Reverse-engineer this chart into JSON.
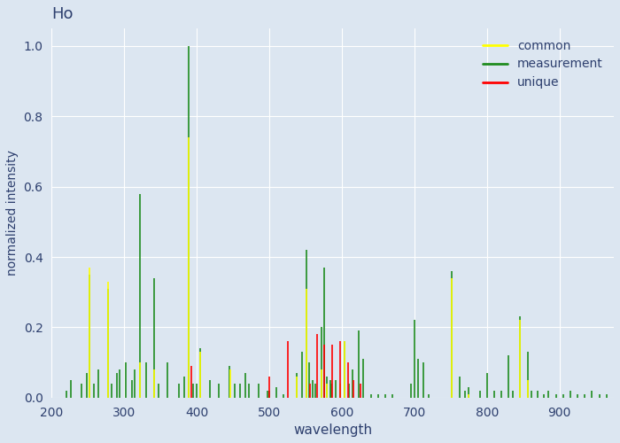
{
  "title": "Ho",
  "xlabel": "wavelength",
  "ylabel": "normalized intensity",
  "xlim": [
    200,
    975
  ],
  "ylim": [
    0,
    1.05
  ],
  "background_color": "#dce6f1",
  "figure_bg": "#dce6f1",
  "legend_labels": [
    "common",
    "measurement",
    "unique"
  ],
  "common_lines": {
    "wavelengths": [
      252,
      278,
      322,
      341,
      389,
      405,
      446,
      538,
      551,
      572,
      579,
      598,
      604,
      752,
      775,
      845,
      856
    ],
    "intensities": [
      0.37,
      0.33,
      0.1,
      0.08,
      0.74,
      0.13,
      0.08,
      0.06,
      0.31,
      0.08,
      0.04,
      0.04,
      0.16,
      0.34,
      0.01,
      0.22,
      0.05
    ]
  },
  "measurement_lines": {
    "wavelengths": [
      220,
      227,
      241,
      248,
      252,
      258,
      265,
      278,
      283,
      290,
      294,
      302,
      311,
      315,
      322,
      330,
      341,
      347,
      360,
      375,
      383,
      389,
      395,
      400,
      405,
      418,
      430,
      445,
      452,
      460,
      467,
      472,
      485,
      498,
      500,
      510,
      520,
      538,
      545,
      551,
      555,
      560,
      564,
      572,
      576,
      579,
      584,
      586,
      592,
      598,
      604,
      610,
      615,
      623,
      630,
      641,
      650,
      660,
      670,
      695,
      700,
      705,
      712,
      720,
      752,
      762,
      770,
      775,
      790,
      800,
      810,
      820,
      830,
      836,
      845,
      856,
      862,
      870,
      878,
      885,
      895,
      905,
      915,
      925,
      935,
      945,
      955,
      965
    ],
    "intensities": [
      0.02,
      0.05,
      0.04,
      0.07,
      0.35,
      0.04,
      0.08,
      0.31,
      0.04,
      0.07,
      0.08,
      0.1,
      0.05,
      0.08,
      0.58,
      0.1,
      0.34,
      0.04,
      0.1,
      0.04,
      0.06,
      1.0,
      0.04,
      0.04,
      0.14,
      0.05,
      0.04,
      0.09,
      0.04,
      0.04,
      0.07,
      0.04,
      0.04,
      0.02,
      0.02,
      0.03,
      0.01,
      0.07,
      0.13,
      0.42,
      0.1,
      0.05,
      0.04,
      0.2,
      0.37,
      0.06,
      0.05,
      0.04,
      0.05,
      0.04,
      0.16,
      0.04,
      0.08,
      0.19,
      0.11,
      0.01,
      0.01,
      0.01,
      0.01,
      0.04,
      0.22,
      0.11,
      0.1,
      0.01,
      0.36,
      0.06,
      0.02,
      0.03,
      0.02,
      0.07,
      0.02,
      0.02,
      0.12,
      0.02,
      0.23,
      0.13,
      0.02,
      0.02,
      0.01,
      0.02,
      0.01,
      0.01,
      0.02,
      0.01,
      0.01,
      0.02,
      0.01,
      0.01
    ]
  },
  "unique_lines": {
    "wavelengths": [
      393,
      500,
      526,
      556,
      566,
      576,
      587,
      598,
      609,
      616,
      626
    ],
    "intensities": [
      0.09,
      0.06,
      0.16,
      0.04,
      0.18,
      0.15,
      0.15,
      0.16,
      0.1,
      0.05,
      0.04
    ]
  },
  "xticks": [
    200,
    300,
    400,
    500,
    600,
    700,
    800,
    900
  ]
}
